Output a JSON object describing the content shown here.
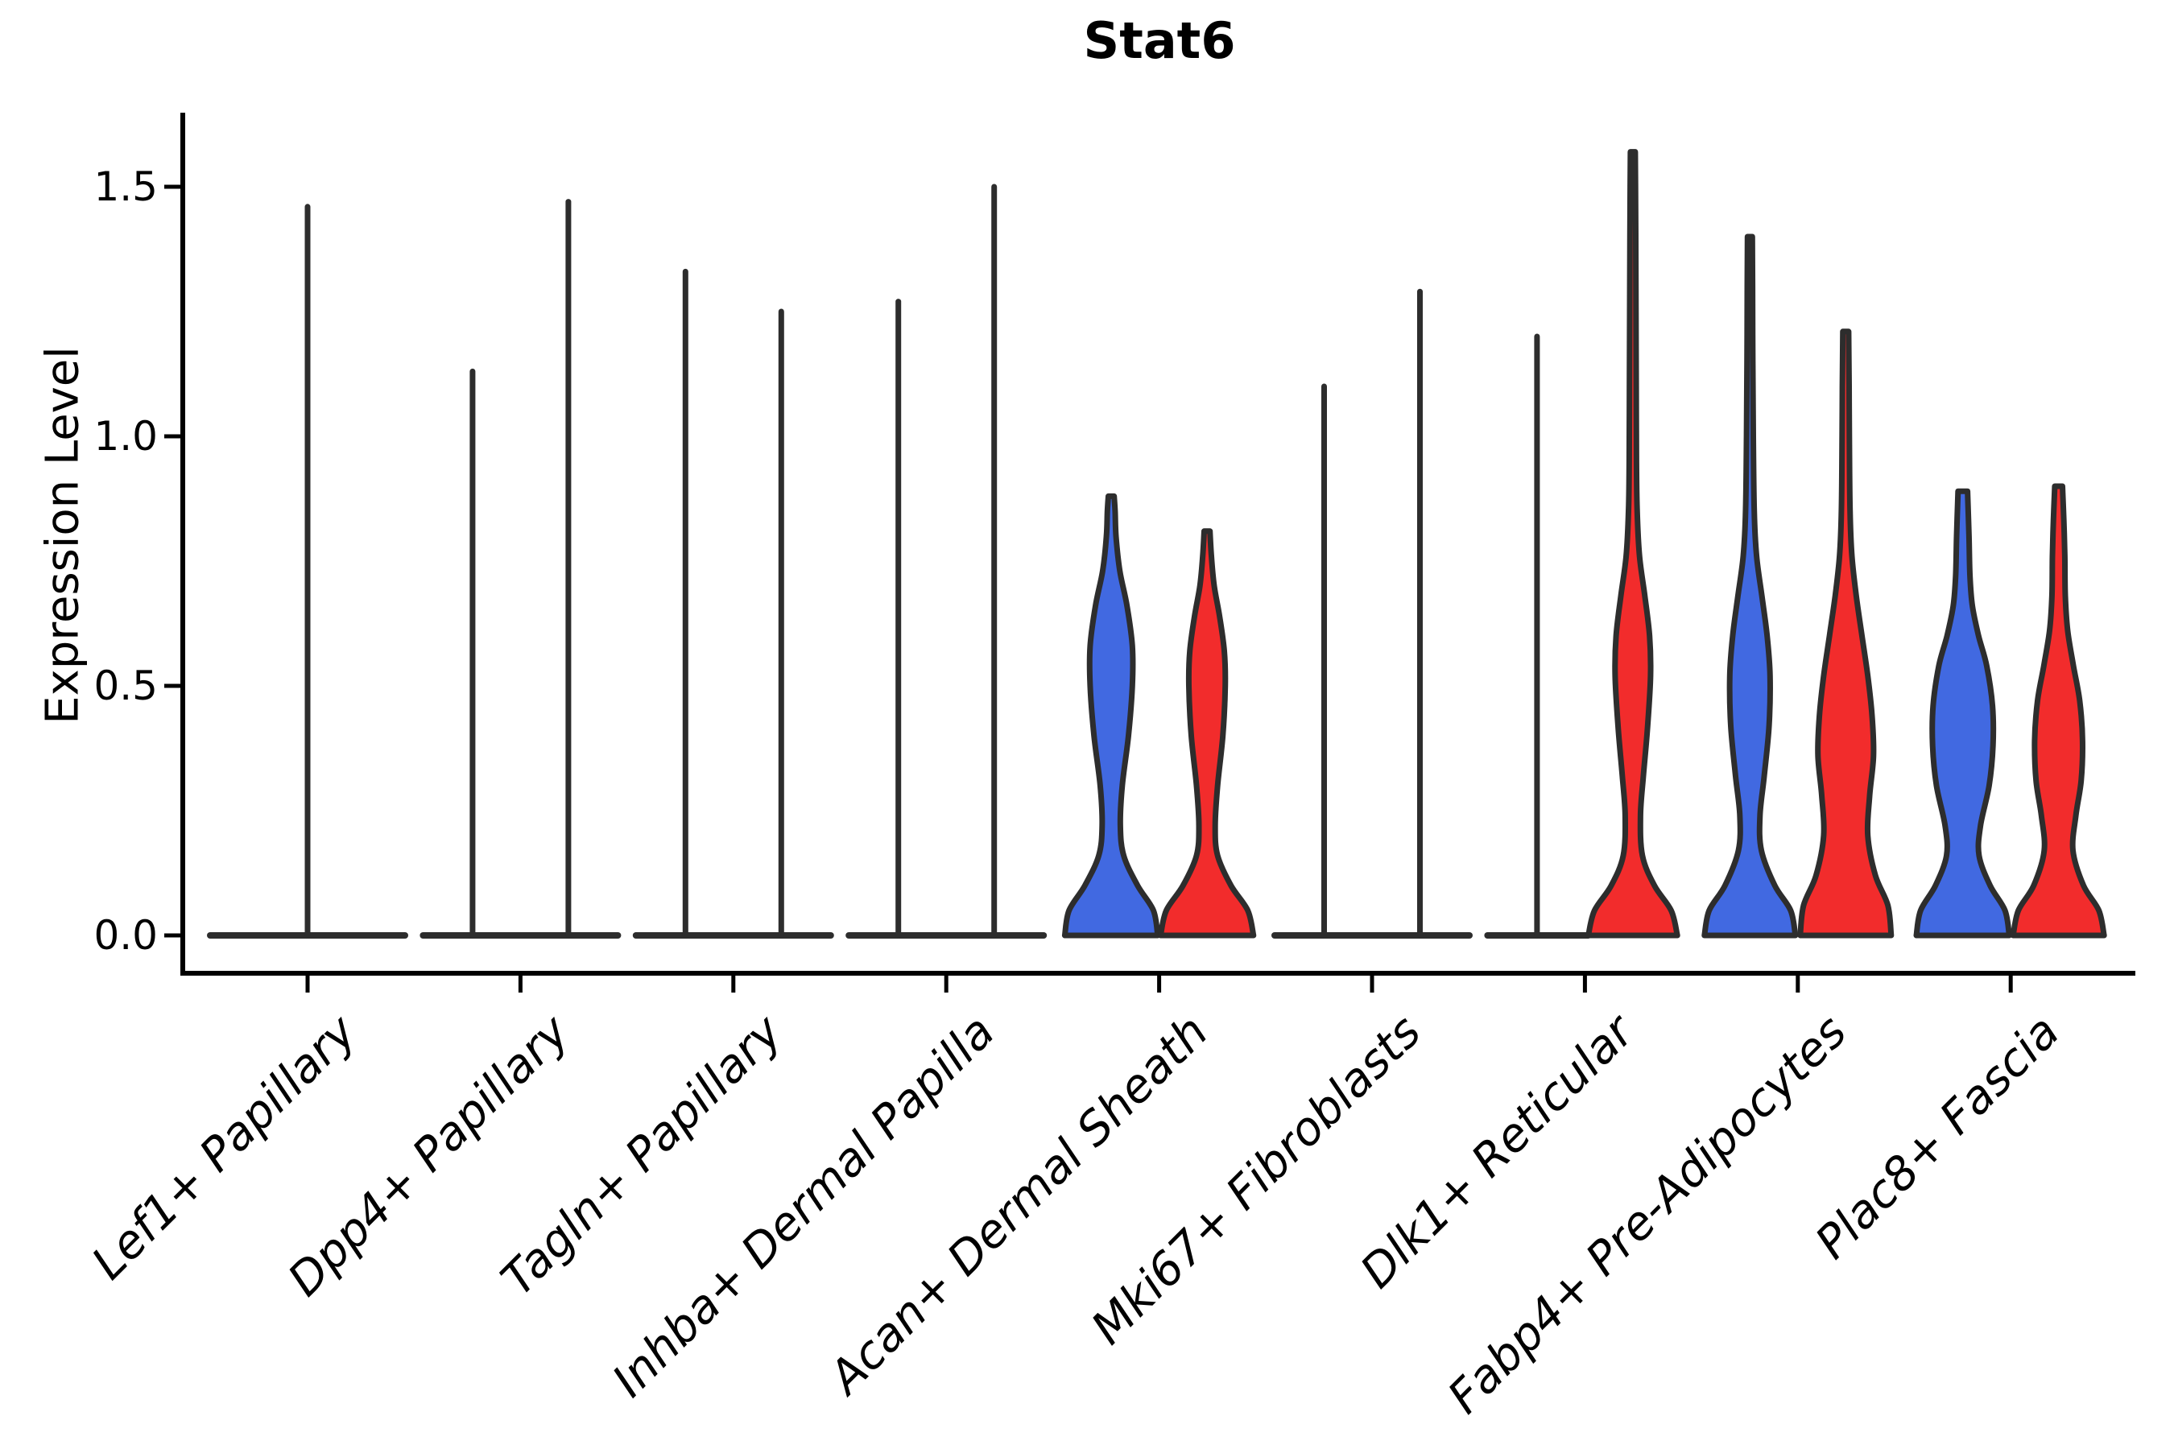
{
  "chart_data": {
    "type": "violin",
    "title": "Stat6",
    "ylabel": "Expression Level",
    "xlabel": "",
    "ylim": [
      -0.08,
      1.65
    ],
    "yticks": [
      "0.0",
      "0.5",
      "1.0",
      "1.5"
    ],
    "ytick_values": [
      0.0,
      0.5,
      1.0,
      1.5
    ],
    "grid": "off",
    "legend": "none",
    "split_violin": true,
    "colors": {
      "blue_fill": "#4169E1",
      "red_fill": "#F22C2C",
      "violin_stroke": "#2D2D2D",
      "axis": "#000000"
    },
    "categories": [
      {
        "label": "Lef1+ Papillary",
        "blade": "full",
        "violins": [
          {
            "side": "full",
            "fill": null,
            "shape": "spike",
            "max": 1.46
          }
        ]
      },
      {
        "label": "Dpp4+ Papillary",
        "blade": "full",
        "violins": [
          {
            "side": "left",
            "fill": null,
            "shape": "spike",
            "max": 1.13
          },
          {
            "side": "right",
            "fill": null,
            "shape": "spike",
            "max": 1.47
          }
        ]
      },
      {
        "label": "Tagln+ Papillary",
        "blade": "full",
        "violins": [
          {
            "side": "left",
            "fill": null,
            "shape": "spike",
            "max": 1.33
          },
          {
            "side": "right",
            "fill": null,
            "shape": "spike",
            "max": 1.25
          }
        ]
      },
      {
        "label": "Inhba+ Dermal Papilla",
        "blade": "full",
        "violins": [
          {
            "side": "left",
            "fill": null,
            "shape": "spike",
            "max": 1.27
          },
          {
            "side": "right",
            "fill": null,
            "shape": "spike",
            "max": 1.5
          }
        ]
      },
      {
        "label": "Acan+ Dermal Sheath",
        "blade": "none",
        "violins": [
          {
            "side": "left",
            "fill": "blue_fill",
            "shape": "violin",
            "max": 0.88,
            "profile": [
              [
                0,
                0.97
              ],
              [
                0.05,
                0.88
              ],
              [
                0.1,
                0.55
              ],
              [
                0.16,
                0.26
              ],
              [
                0.22,
                0.19
              ],
              [
                0.3,
                0.23
              ],
              [
                0.4,
                0.36
              ],
              [
                0.5,
                0.44
              ],
              [
                0.58,
                0.44
              ],
              [
                0.66,
                0.33
              ],
              [
                0.73,
                0.18
              ],
              [
                0.8,
                0.1
              ],
              [
                0.85,
                0.08
              ],
              [
                0.88,
                0.06
              ]
            ]
          },
          {
            "side": "right",
            "fill": "red_fill",
            "shape": "violin",
            "max": 0.81,
            "profile": [
              [
                0,
                0.97
              ],
              [
                0.05,
                0.85
              ],
              [
                0.1,
                0.5
              ],
              [
                0.16,
                0.22
              ],
              [
                0.22,
                0.17
              ],
              [
                0.3,
                0.22
              ],
              [
                0.4,
                0.33
              ],
              [
                0.5,
                0.38
              ],
              [
                0.57,
                0.36
              ],
              [
                0.64,
                0.26
              ],
              [
                0.7,
                0.15
              ],
              [
                0.76,
                0.09
              ],
              [
                0.81,
                0.06
              ]
            ]
          }
        ]
      },
      {
        "label": "Mki67+ Fibroblasts",
        "blade": "full",
        "violins": [
          {
            "side": "left",
            "fill": null,
            "shape": "spike",
            "max": 1.1
          },
          {
            "side": "right",
            "fill": null,
            "shape": "spike",
            "max": 1.29
          }
        ]
      },
      {
        "label": "Dlk1+ Reticular",
        "blade": "left-half",
        "violins": [
          {
            "side": "left",
            "fill": null,
            "shape": "spike",
            "max": 1.2
          },
          {
            "side": "right",
            "fill": "red_fill",
            "shape": "violin",
            "max": 1.57,
            "profile": [
              [
                0,
                0.93
              ],
              [
                0.05,
                0.8
              ],
              [
                0.1,
                0.45
              ],
              [
                0.16,
                0.2
              ],
              [
                0.24,
                0.16
              ],
              [
                0.32,
                0.22
              ],
              [
                0.42,
                0.31
              ],
              [
                0.52,
                0.37
              ],
              [
                0.6,
                0.35
              ],
              [
                0.68,
                0.25
              ],
              [
                0.76,
                0.14
              ],
              [
                0.85,
                0.09
              ],
              [
                0.95,
                0.075
              ],
              [
                1.1,
                0.07
              ],
              [
                1.25,
                0.065
              ],
              [
                1.4,
                0.06
              ],
              [
                1.5,
                0.055
              ],
              [
                1.57,
                0.05
              ]
            ]
          }
        ]
      },
      {
        "label": "Fabp4+ Pre-Adipocytes",
        "blade": "none",
        "violins": [
          {
            "side": "left",
            "fill": "blue_fill",
            "shape": "violin",
            "max": 1.4,
            "profile": [
              [
                0,
                0.95
              ],
              [
                0.05,
                0.85
              ],
              [
                0.1,
                0.52
              ],
              [
                0.17,
                0.24
              ],
              [
                0.24,
                0.21
              ],
              [
                0.32,
                0.3
              ],
              [
                0.42,
                0.4
              ],
              [
                0.52,
                0.42
              ],
              [
                0.6,
                0.36
              ],
              [
                0.68,
                0.25
              ],
              [
                0.76,
                0.14
              ],
              [
                0.85,
                0.09
              ],
              [
                1.0,
                0.07
              ],
              [
                1.15,
                0.06
              ],
              [
                1.3,
                0.055
              ],
              [
                1.4,
                0.05
              ]
            ]
          },
          {
            "side": "right",
            "fill": "red_fill",
            "shape": "violin",
            "max": 1.21,
            "profile": [
              [
                0,
                0.95
              ],
              [
                0.06,
                0.88
              ],
              [
                0.12,
                0.62
              ],
              [
                0.2,
                0.46
              ],
              [
                0.28,
                0.5
              ],
              [
                0.36,
                0.58
              ],
              [
                0.44,
                0.55
              ],
              [
                0.52,
                0.46
              ],
              [
                0.6,
                0.34
              ],
              [
                0.68,
                0.22
              ],
              [
                0.76,
                0.13
              ],
              [
                0.85,
                0.09
              ],
              [
                1.0,
                0.075
              ],
              [
                1.1,
                0.07
              ],
              [
                1.21,
                0.06
              ]
            ]
          }
        ]
      },
      {
        "label": "Plac8+ Fascia",
        "blade": "none",
        "violins": [
          {
            "side": "left",
            "fill": "blue_fill",
            "shape": "violin",
            "max": 0.89,
            "profile": [
              [
                0,
                0.97
              ],
              [
                0.05,
                0.88
              ],
              [
                0.1,
                0.57
              ],
              [
                0.16,
                0.34
              ],
              [
                0.22,
                0.37
              ],
              [
                0.3,
                0.55
              ],
              [
                0.38,
                0.63
              ],
              [
                0.46,
                0.62
              ],
              [
                0.54,
                0.5
              ],
              [
                0.6,
                0.33
              ],
              [
                0.66,
                0.2
              ],
              [
                0.72,
                0.15
              ],
              [
                0.8,
                0.13
              ],
              [
                0.89,
                0.1
              ]
            ]
          },
          {
            "side": "right",
            "fill": "red_fill",
            "shape": "violin",
            "max": 0.9,
            "profile": [
              [
                0,
                0.95
              ],
              [
                0.05,
                0.84
              ],
              [
                0.1,
                0.52
              ],
              [
                0.17,
                0.3
              ],
              [
                0.24,
                0.36
              ],
              [
                0.31,
                0.47
              ],
              [
                0.39,
                0.5
              ],
              [
                0.47,
                0.44
              ],
              [
                0.54,
                0.31
              ],
              [
                0.61,
                0.19
              ],
              [
                0.68,
                0.14
              ],
              [
                0.76,
                0.13
              ],
              [
                0.83,
                0.11
              ],
              [
                0.9,
                0.08
              ]
            ]
          }
        ]
      }
    ]
  }
}
